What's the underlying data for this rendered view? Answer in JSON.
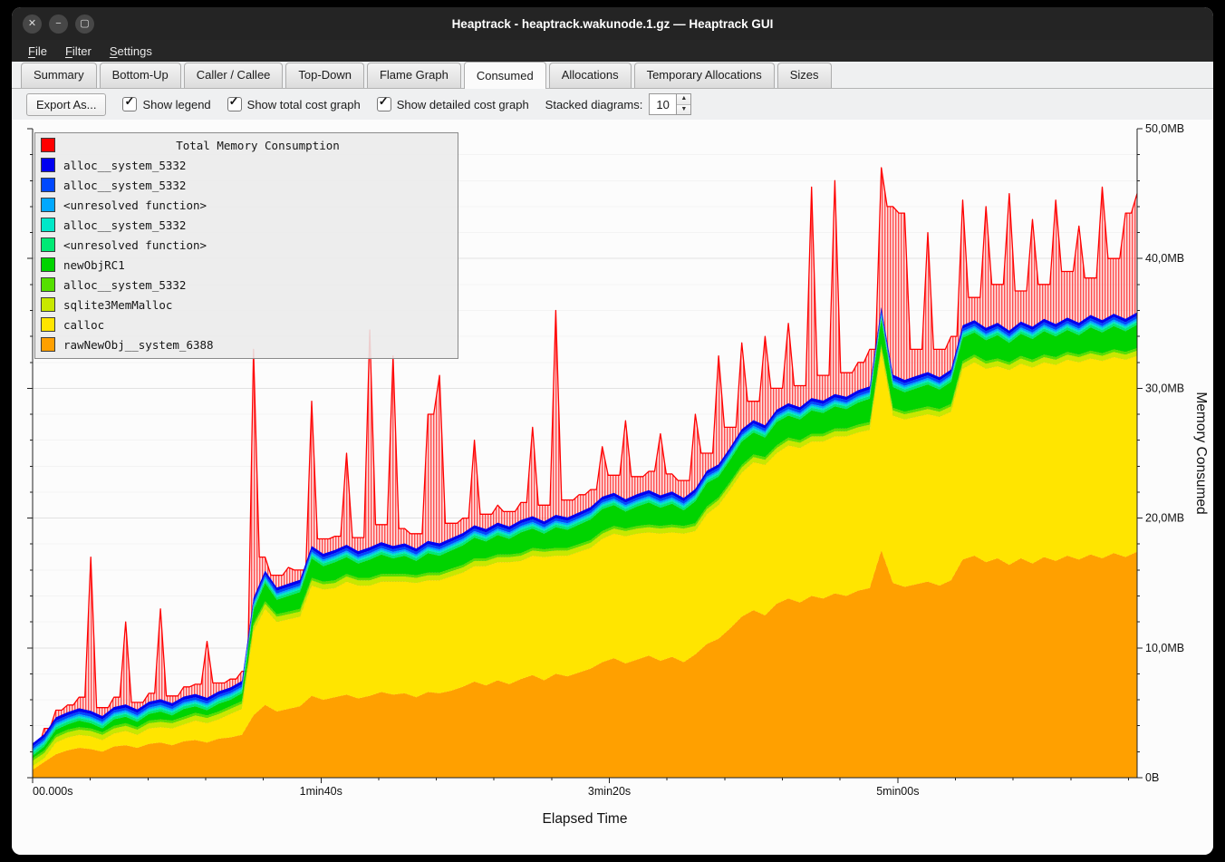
{
  "window": {
    "title": "Heaptrack - heaptrack.wakunode.1.gz — Heaptrack GUI",
    "controls": [
      {
        "name": "close",
        "glyph": "✕"
      },
      {
        "name": "minimize",
        "glyph": "−"
      },
      {
        "name": "maximize",
        "glyph": "▢"
      }
    ]
  },
  "menubar": {
    "items": [
      "File",
      "Filter",
      "Settings"
    ]
  },
  "tabs": {
    "items": [
      "Summary",
      "Bottom-Up",
      "Caller / Callee",
      "Top-Down",
      "Flame Graph",
      "Consumed",
      "Allocations",
      "Temporary Allocations",
      "Sizes"
    ],
    "active": "Consumed"
  },
  "toolbar": {
    "export_label": "Export As...",
    "checkboxes": [
      {
        "label": "Show legend",
        "checked": true
      },
      {
        "label": "Show total cost graph",
        "checked": true
      },
      {
        "label": "Show detailed cost graph",
        "checked": true
      }
    ],
    "stacked_label": "Stacked diagrams:",
    "stacked_value": "10",
    "spin_up_icon": "▲",
    "spin_down_icon": "▼"
  },
  "chart_data": {
    "type": "area",
    "stacked": true,
    "title": "Total Memory Consumption",
    "xlabel": "Elapsed Time",
    "ylabel": "Memory Consumed",
    "unit": "MB",
    "x_max": 383,
    "y_max": 50,
    "x_minor_step": 20,
    "y_minor_step": 2,
    "grid": true,
    "legend_position": "top-left",
    "x_ticks": [
      {
        "t": 0,
        "label": "00.000s"
      },
      {
        "t": 100,
        "label": "1min40s"
      },
      {
        "t": 200,
        "label": "3min20s"
      },
      {
        "t": 300,
        "label": "5min00s"
      }
    ],
    "y_ticks": [
      {
        "v": 0,
        "label": "0B"
      },
      {
        "v": 10,
        "label": "10,0MB"
      },
      {
        "v": 20,
        "label": "20,0MB"
      },
      {
        "v": 30,
        "label": "30,0MB"
      },
      {
        "v": 40,
        "label": "40,0MB"
      },
      {
        "v": 50,
        "label": "50,0MB"
      }
    ],
    "total": {
      "name": "Total Memory Consumption",
      "color": "#ff0000",
      "values": [
        2.2,
        3.8,
        5.2,
        5.6,
        6.2,
        17.0,
        5.4,
        6.2,
        12.0,
        5.8,
        6.5,
        13.0,
        6.3,
        7.0,
        7.2,
        10.5,
        7.3,
        7.6,
        8.2,
        33.0,
        17.0,
        15.6,
        16.2,
        16.0,
        29.0,
        18.4,
        18.6,
        25.0,
        18.5,
        34.5,
        19.5,
        32.5,
        19.2,
        18.8,
        28.0,
        31.0,
        19.6,
        20.0,
        26.0,
        20.3,
        21.0,
        20.5,
        21.2,
        27.0,
        21.0,
        36.0,
        21.4,
        21.8,
        22.2,
        25.5,
        23.3,
        27.5,
        23.2,
        23.6,
        26.5,
        23.4,
        22.9,
        28.0,
        25.0,
        32.5,
        27.0,
        33.5,
        29.0,
        34.0,
        30.0,
        35.0,
        30.2,
        45.5,
        31.0,
        46.0,
        31.2,
        32.0,
        33.0,
        47.0,
        44.0,
        43.5,
        33.0,
        42.0,
        33.0,
        34.0,
        44.5,
        37.0,
        44.0,
        38.0,
        45.0,
        37.5,
        43.0,
        38.0,
        44.5,
        39.0,
        42.5,
        38.5,
        45.5,
        40.0,
        43.5,
        45.0
      ]
    },
    "series_bottom_to_top": [
      {
        "name": "rawNewObj__system_6388",
        "color": "#ffa000",
        "values": [
          0.6,
          1.2,
          1.8,
          2.1,
          2.3,
          2.2,
          2.0,
          2.4,
          2.5,
          2.3,
          2.6,
          2.7,
          2.5,
          2.8,
          2.9,
          2.7,
          3.0,
          3.1,
          3.3,
          4.8,
          5.6,
          5.1,
          5.3,
          5.5,
          6.3,
          6.0,
          6.2,
          6.4,
          6.1,
          6.3,
          6.6,
          6.4,
          6.5,
          6.2,
          6.6,
          6.5,
          6.7,
          7.0,
          7.4,
          7.1,
          7.5,
          7.2,
          7.6,
          7.9,
          7.5,
          8.0,
          7.8,
          8.1,
          8.4,
          8.9,
          9.2,
          8.8,
          9.1,
          9.4,
          9.0,
          9.3,
          8.9,
          9.5,
          10.3,
          10.7,
          11.5,
          12.4,
          12.9,
          12.5,
          13.4,
          13.8,
          13.5,
          14.0,
          13.8,
          14.2,
          14.0,
          14.4,
          14.6,
          17.5,
          15.0,
          14.7,
          14.9,
          15.1,
          14.8,
          15.2,
          16.8,
          17.1,
          16.6,
          16.9,
          16.4,
          16.9,
          16.5,
          17.0,
          16.7,
          17.1,
          16.8,
          17.2,
          16.9,
          17.3,
          17.0,
          17.4
        ]
      },
      {
        "name": "calloc",
        "color": "#ffe500",
        "values": [
          0.3,
          0.3,
          0.9,
          1.0,
          1.0,
          1.0,
          0.9,
          1.0,
          1.1,
          1.0,
          1.2,
          1.2,
          1.3,
          1.3,
          1.5,
          1.5,
          1.5,
          1.8,
          2.0,
          6.5,
          7.4,
          6.9,
          6.9,
          6.9,
          8.5,
          8.5,
          8.4,
          8.7,
          8.7,
          8.5,
          8.5,
          8.7,
          8.6,
          8.8,
          8.6,
          8.7,
          8.8,
          8.8,
          8.9,
          9.2,
          9.1,
          9.4,
          9.1,
          9.2,
          9.5,
          9.1,
          9.3,
          9.3,
          9.3,
          9.5,
          9.6,
          9.8,
          9.7,
          9.5,
          9.8,
          9.6,
          9.9,
          9.5,
          10.0,
          10.3,
          10.7,
          11.1,
          11.4,
          11.6,
          11.6,
          11.8,
          11.9,
          11.9,
          12.1,
          12.1,
          12.3,
          12.2,
          12.2,
          15.3,
          12.9,
          12.9,
          12.9,
          12.9,
          13.0,
          13.0,
          14.7,
          14.9,
          14.9,
          14.8,
          15.0,
          15.0,
          15.1,
          15.0,
          15.1,
          15.1,
          15.2,
          15.1,
          15.2,
          15.1,
          15.2,
          15.1
        ]
      },
      {
        "name": "sqlite3MemMalloc",
        "color": "#c8e800",
        "constant": 0.4
      },
      {
        "name": "alloc__system_5332",
        "color": "#55e000",
        "constant": 0.2
      },
      {
        "name": "newObjRC1",
        "color": "#00d400",
        "values": [
          0.2,
          0.3,
          0.4,
          0.4,
          0.5,
          0.4,
          0.3,
          0.5,
          0.5,
          0.4,
          0.5,
          0.6,
          0.4,
          0.6,
          0.5,
          0.4,
          0.6,
          0.5,
          0.6,
          1.0,
          1.4,
          1.1,
          1.2,
          1.3,
          1.5,
          1.2,
          1.4,
          1.3,
          1.1,
          1.4,
          1.5,
          1.2,
          1.4,
          1.1,
          1.5,
          1.3,
          1.4,
          1.5,
          1.6,
          1.3,
          1.5,
          1.2,
          1.6,
          1.5,
          1.2,
          1.6,
          1.4,
          1.5,
          1.6,
          1.7,
          1.6,
          1.3,
          1.5,
          1.7,
          1.4,
          1.6,
          1.2,
          1.7,
          1.8,
          1.6,
          1.7,
          1.8,
          1.7,
          1.5,
          1.8,
          1.7,
          1.6,
          1.8,
          1.6,
          1.7,
          1.5,
          1.7,
          1.8,
          1.9,
          1.6,
          1.5,
          1.6,
          1.7,
          1.5,
          1.7,
          1.8,
          1.7,
          1.6,
          1.8,
          1.5,
          1.7,
          1.6,
          1.8,
          1.6,
          1.7,
          1.5,
          1.8,
          1.6,
          1.8,
          1.6,
          1.8
        ]
      },
      {
        "name": "<unresolved function>",
        "color": "#00ea75",
        "constant": 0.2
      },
      {
        "name": "alloc__system_5332",
        "color": "#00e8c8",
        "constant": 0.15
      },
      {
        "name": "<unresolved function>",
        "color": "#00a8ff",
        "constant": 0.15
      },
      {
        "name": "alloc__system_5332",
        "color": "#0048ff",
        "constant": 0.2
      },
      {
        "name": "alloc__system_5332",
        "color": "#0000f0",
        "constant": 0.25
      }
    ]
  }
}
